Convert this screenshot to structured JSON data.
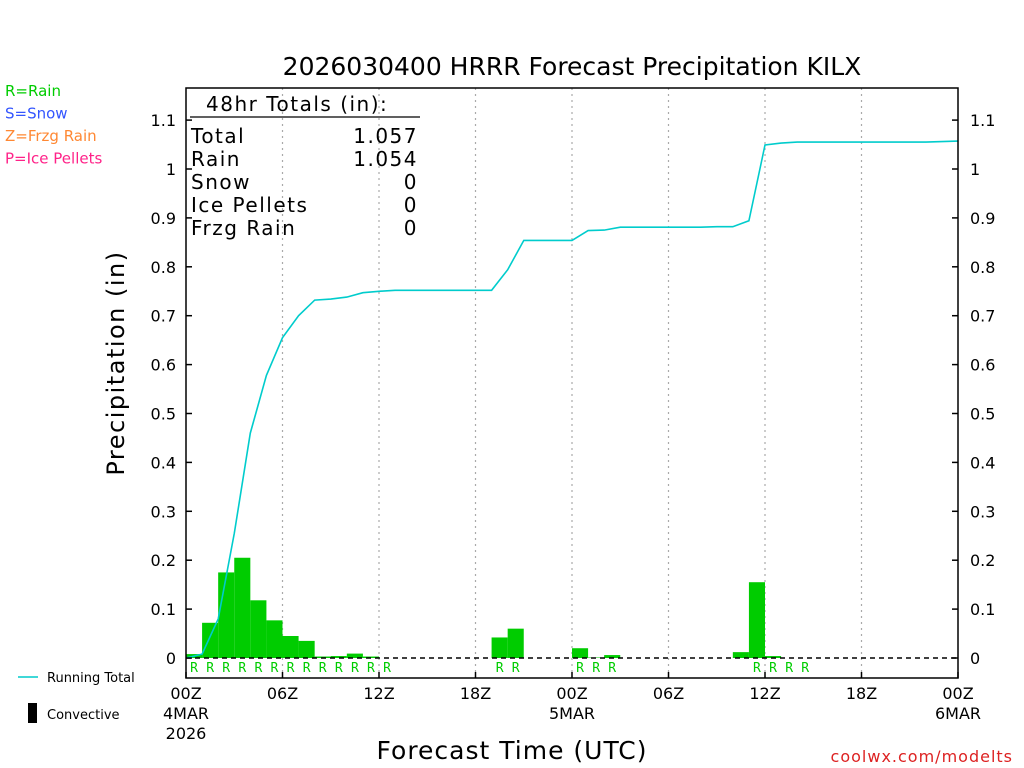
{
  "chart_data": {
    "type": "bar",
    "title": "2026030400 HRRR Forecast Precipitation KILX",
    "xlabel": "Forecast Time (UTC)",
    "ylabel": "Precipitation (in)",
    "ylim": [
      0,
      1.15
    ],
    "yticks": [
      0,
      0.1,
      0.2,
      0.3,
      0.4,
      0.5,
      0.6,
      0.7,
      0.8,
      0.9,
      1,
      1.1
    ],
    "xlim_hours": [
      0,
      48
    ],
    "xticks": [
      {
        "hour": 0,
        "label": "00Z",
        "sub1": "4MAR",
        "sub2": "2026"
      },
      {
        "hour": 6,
        "label": "06Z"
      },
      {
        "hour": 12,
        "label": "12Z"
      },
      {
        "hour": 18,
        "label": "18Z"
      },
      {
        "hour": 24,
        "label": "00Z",
        "sub1": "5MAR"
      },
      {
        "hour": 30,
        "label": "06Z"
      },
      {
        "hour": 36,
        "label": "12Z"
      },
      {
        "hour": 42,
        "label": "18Z"
      },
      {
        "hour": 48,
        "label": "00Z",
        "sub1": "6MAR"
      }
    ],
    "series": [
      {
        "name": "Hourly Precipitation",
        "kind": "bar",
        "color": "#00cc00",
        "hours": [
          1,
          2,
          3,
          4,
          5,
          6,
          7,
          8,
          9,
          10,
          11,
          12,
          13,
          14,
          15,
          16,
          17,
          18,
          19,
          20,
          21,
          22,
          23,
          24,
          25,
          26,
          27,
          28,
          29,
          30,
          31,
          32,
          33,
          34,
          35,
          36,
          37,
          38,
          39,
          40,
          41,
          42,
          43,
          44,
          45,
          46,
          47,
          48
        ],
        "values": [
          0.008,
          0.072,
          0.175,
          0.205,
          0.118,
          0.077,
          0.045,
          0.035,
          0.003,
          0.004,
          0.009,
          0.003,
          0,
          0,
          0,
          0,
          0,
          0,
          0,
          0.042,
          0.06,
          0,
          0,
          0,
          0.02,
          0.001,
          0.006,
          0,
          0,
          0,
          0,
          0,
          0,
          0,
          0.012,
          0.155,
          0.004,
          0,
          0,
          0,
          0,
          0,
          0,
          0,
          0,
          0,
          0,
          0
        ]
      },
      {
        "name": "Running Total",
        "kind": "line",
        "color": "#00cccc",
        "hours": [
          0,
          1,
          2,
          3,
          4,
          5,
          6,
          7,
          8,
          9,
          10,
          11,
          12,
          13,
          14,
          15,
          16,
          17,
          18,
          19,
          20,
          21,
          22,
          23,
          24,
          25,
          26,
          27,
          28,
          29,
          30,
          31,
          32,
          33,
          34,
          35,
          36,
          37,
          38,
          39,
          40,
          41,
          42,
          43,
          44,
          45,
          46,
          47,
          48
        ],
        "values": [
          0,
          0.008,
          0.08,
          0.255,
          0.46,
          0.578,
          0.655,
          0.7,
          0.732,
          0.734,
          0.738,
          0.747,
          0.75,
          0.752,
          0.752,
          0.752,
          0.752,
          0.752,
          0.752,
          0.752,
          0.794,
          0.854,
          0.854,
          0.854,
          0.854,
          0.874,
          0.875,
          0.881,
          0.881,
          0.881,
          0.881,
          0.881,
          0.881,
          0.882,
          0.882,
          0.894,
          1.049,
          1.053,
          1.055,
          1.055,
          1.055,
          1.055,
          1.055,
          1.055,
          1.055,
          1.055,
          1.055,
          1.056,
          1.057
        ]
      }
    ],
    "precip_type_markers": {
      "letter": "R",
      "color": "#00cc00",
      "hours": [
        1,
        2,
        3,
        4,
        5,
        6,
        7,
        8,
        9,
        10,
        11,
        12,
        13,
        20,
        21,
        25,
        26,
        27,
        36,
        37,
        38,
        39
      ]
    },
    "precip_legend": [
      {
        "label": "R=Rain",
        "color": "#00cc00"
      },
      {
        "label": "S=Snow",
        "color": "#3355ff"
      },
      {
        "label": "Z=Frzg Rain",
        "color": "#ff8833"
      },
      {
        "label": "P=Ice Pellets",
        "color": "#ff2288"
      }
    ],
    "series_legend": [
      {
        "label": "Running Total",
        "color": "#00cccc",
        "kind": "line"
      },
      {
        "label": "Convective",
        "color": "#000000",
        "kind": "bar"
      }
    ],
    "totals_box": {
      "header": "48hr Totals (in):",
      "rows": [
        {
          "label": "Total",
          "value": "1.057"
        },
        {
          "label": "Rain",
          "value": "1.054"
        },
        {
          "label": "Snow",
          "value": "0"
        },
        {
          "label": "Ice Pellets",
          "value": "0"
        },
        {
          "label": "Frzg Rain",
          "value": "0"
        }
      ]
    },
    "credit": "coolwx.com/modelts"
  }
}
